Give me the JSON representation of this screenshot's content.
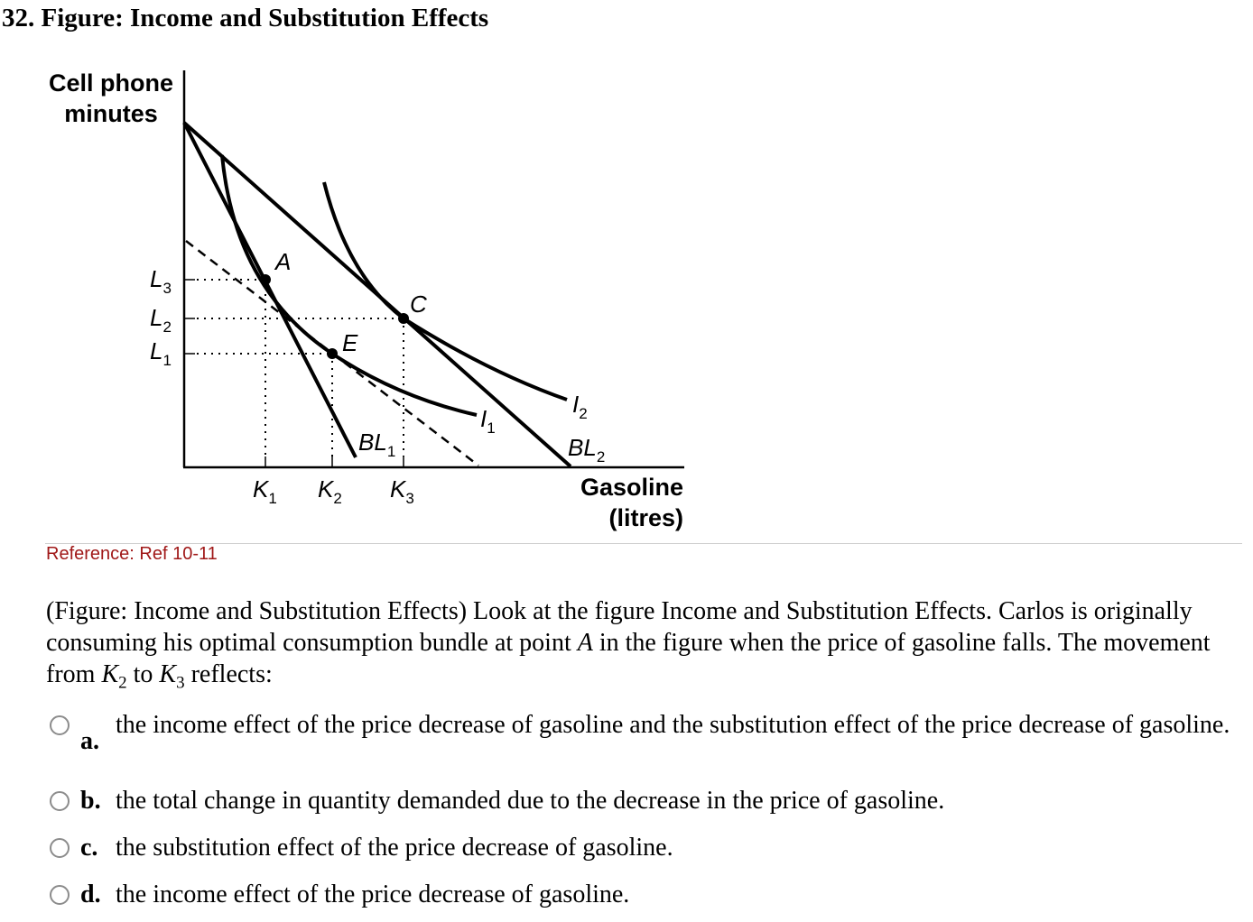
{
  "question": {
    "title": "32. Figure: Income and Substitution Effects",
    "reference": "Reference: Ref 10-11",
    "stem_pre": "(Figure: Income and Substitution Effects) Look at the figure Income and Substitution Effects. Carlos is originally consuming his optimal consumption bundle at point ",
    "stem_point": "A",
    "stem_mid": " in the figure when the price of gasoline falls. The movement from ",
    "stem_k2": "K",
    "stem_k2_sub": "2",
    "stem_to": " to ",
    "stem_k3": "K",
    "stem_k3_sub": "3",
    "stem_post": " reflects:"
  },
  "figure": {
    "y_label_1": "Cell phone",
    "y_label_2": "minutes",
    "x_label_1": "Gasoline",
    "x_label_2": "(litres)",
    "points": {
      "a": "A",
      "c": "C",
      "e": "E"
    },
    "y_ticks": [
      {
        "l": "L",
        "s": "3"
      },
      {
        "l": "L",
        "s": "2"
      },
      {
        "l": "L",
        "s": "1"
      }
    ],
    "x_ticks": [
      {
        "l": "K",
        "s": "1"
      },
      {
        "l": "K",
        "s": "2"
      },
      {
        "l": "K",
        "s": "3"
      }
    ],
    "curve_labels": {
      "i1": "I",
      "i1_sub": "1",
      "i2": "I",
      "i2_sub": "2",
      "bl1": "BL",
      "bl1_sub": "1",
      "bl2": "BL",
      "bl2_sub": "2"
    }
  },
  "options": [
    {
      "letter": "a.",
      "text": "the income effect of the price decrease of gasoline and the substitution effect of the price decrease of gasoline."
    },
    {
      "letter": "b.",
      "text": "the total change in quantity demanded due to the decrease in the price of gasoline."
    },
    {
      "letter": "c.",
      "text": "the substitution effect of the price decrease of gasoline."
    },
    {
      "letter": "d.",
      "text": "the income effect of the price decrease of gasoline."
    }
  ]
}
